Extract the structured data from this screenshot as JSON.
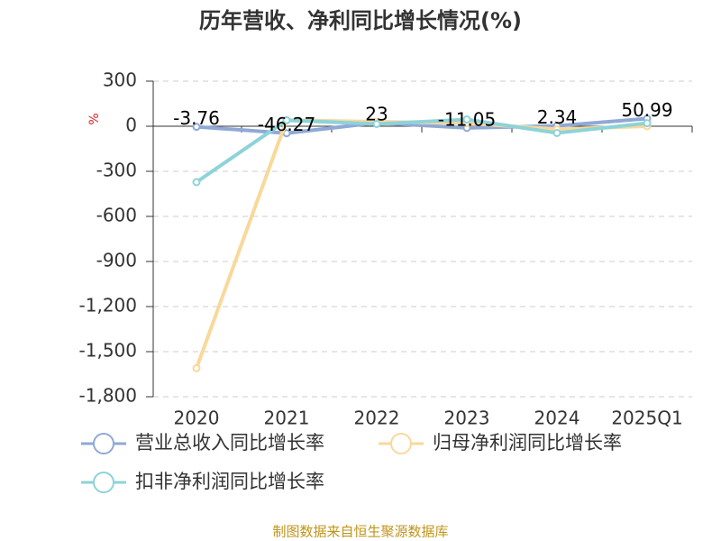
{
  "chart_data": {
    "type": "line",
    "title": "历年营收、净利同比增长情况(%)",
    "y_unit": "%",
    "categories": [
      "2020",
      "2021",
      "2022",
      "2023",
      "2024",
      "2025Q1"
    ],
    "series": [
      {
        "name": "营业总收入同比增长率",
        "color": "#8fa9d6",
        "values": [
          -3.76,
          -46.27,
          23,
          -11.05,
          2.34,
          50.99
        ],
        "show_labels": true
      },
      {
        "name": "归母净利润同比增长率",
        "color": "#fad89a",
        "values": [
          -1610,
          40,
          30,
          20,
          -20,
          0
        ]
      },
      {
        "name": "扣非净利润同比增长率",
        "color": "#8dd3d8",
        "values": [
          -372,
          40,
          15,
          45,
          -45,
          20
        ]
      }
    ],
    "ylim": [
      -1800,
      300
    ],
    "yticks": [
      300,
      0,
      -300,
      -600,
      -900,
      {
        "value": -1200,
        "label": "-1,200"
      },
      {
        "value": -1500,
        "label": "-1,500"
      },
      {
        "value": -1800,
        "label": "-1,800"
      }
    ],
    "grid": true,
    "source": "制图数据来自恒生聚源数据库"
  }
}
